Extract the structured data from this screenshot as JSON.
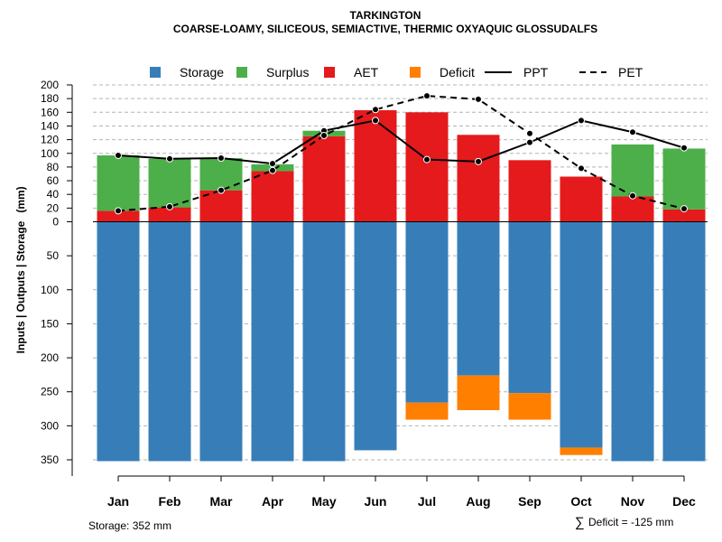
{
  "chart_data": {
    "type": "bar",
    "title": "TARKINGTON",
    "subtitle": "COARSE-LOAMY, SILICEOUS, SEMIACTIVE, THERMIC OXYAQUIC GLOSSUDALFS",
    "ylabel_left": "Inputs | Outputs | Storage",
    "ylabel_unit": "(mm)",
    "categories": [
      "Jan",
      "Feb",
      "Mar",
      "Apr",
      "May",
      "Jun",
      "Jul",
      "Aug",
      "Sep",
      "Oct",
      "Nov",
      "Dec"
    ],
    "upper_axis": {
      "ylim": [
        0,
        200
      ],
      "ticks": [
        "0",
        "20",
        "40",
        "60",
        "80",
        "100",
        "120",
        "140",
        "160",
        "180",
        "200"
      ]
    },
    "lower_axis": {
      "ylim": [
        0,
        352
      ],
      "ticks": [
        "0",
        "50",
        "100",
        "150",
        "200",
        "250",
        "300",
        "350"
      ]
    },
    "legend": [
      {
        "label": "Storage",
        "kind": "box",
        "color": "#377EB8"
      },
      {
        "label": "Surplus",
        "kind": "box",
        "color": "#4DAF4A"
      },
      {
        "label": "AET",
        "kind": "box",
        "color": "#E41A1C"
      },
      {
        "label": "Deficit",
        "kind": "box",
        "color": "#FF7F00"
      },
      {
        "label": "PPT",
        "kind": "solid"
      },
      {
        "label": "PET",
        "kind": "dashed"
      }
    ],
    "colors": {
      "storage": "#377EB8",
      "surplus": "#4DAF4A",
      "aet": "#E41A1C",
      "deficit": "#FF7F00"
    },
    "series": [
      {
        "name": "AET",
        "values": [
          16,
          21,
          46,
          74,
          125,
          163,
          160,
          127,
          90,
          66,
          37,
          18
        ]
      },
      {
        "name": "Surplus",
        "values": [
          81,
          71,
          47,
          10,
          8,
          0,
          0,
          0,
          0,
          0,
          76,
          89
        ]
      },
      {
        "name": "Storage",
        "values": [
          352,
          352,
          352,
          352,
          352,
          336,
          266,
          226,
          252,
          332,
          352,
          352
        ]
      },
      {
        "name": "Deficit",
        "values": [
          0,
          0,
          0,
          0,
          0,
          0,
          25,
          51,
          39,
          11,
          0,
          0
        ]
      },
      {
        "name": "PPT",
        "values": [
          97,
          92,
          93,
          85,
          133,
          148,
          91,
          88,
          116,
          148,
          131,
          108
        ]
      },
      {
        "name": "PET",
        "values": [
          16,
          22,
          46,
          75,
          126,
          164,
          184,
          179,
          129,
          78,
          38,
          19
        ]
      }
    ],
    "storage_note": "Storage: 352 mm",
    "deficit_symbol": "∑",
    "deficit_note": "Deficit = -125 mm"
  }
}
